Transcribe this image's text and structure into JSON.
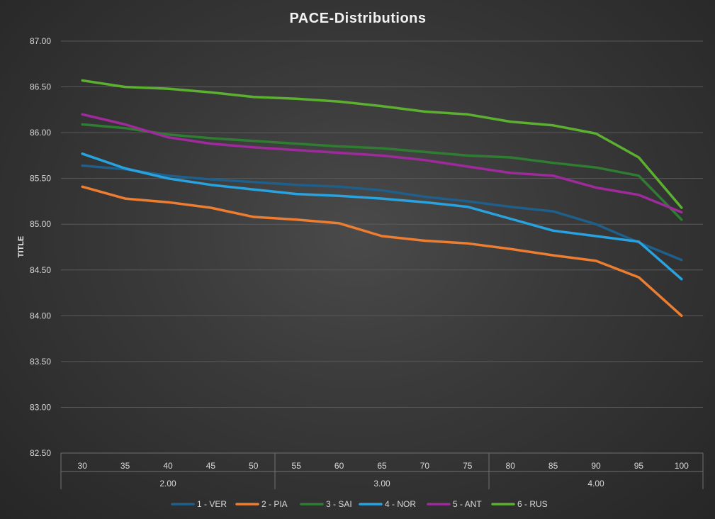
{
  "chart_data": {
    "type": "line",
    "title": "PACE-Distributions",
    "xlabel": "",
    "ylabel": "TITLE",
    "ylim": [
      82.5,
      87.0
    ],
    "y_ticks": [
      "82.50",
      "83.00",
      "83.50",
      "84.00",
      "84.50",
      "85.00",
      "85.50",
      "86.00",
      "86.50",
      "87.00"
    ],
    "grid": true,
    "legend_position": "bottom",
    "categories": [
      "30",
      "35",
      "40",
      "45",
      "50",
      "55",
      "60",
      "65",
      "70",
      "75",
      "80",
      "85",
      "90",
      "95",
      "100"
    ],
    "category_groups": [
      {
        "label": "2.00",
        "count": 5
      },
      {
        "label": "3.00",
        "count": 5
      },
      {
        "label": "4.00",
        "count": 5
      }
    ],
    "series": [
      {
        "name": "1 - VER",
        "color": "#1f5f8b",
        "values": [
          85.64,
          85.6,
          85.53,
          85.49,
          85.46,
          85.43,
          85.41,
          85.37,
          85.3,
          85.25,
          85.19,
          85.14,
          85.0,
          84.8,
          84.61
        ]
      },
      {
        "name": "2 - PIA",
        "color": "#ed7d31",
        "values": [
          85.41,
          85.28,
          85.24,
          85.18,
          85.08,
          85.05,
          85.01,
          84.87,
          84.82,
          84.79,
          84.73,
          84.66,
          84.6,
          84.42,
          84.0
        ]
      },
      {
        "name": "3 - SAI",
        "color": "#2e7d32",
        "values": [
          86.09,
          86.05,
          85.98,
          85.94,
          85.91,
          85.88,
          85.85,
          85.83,
          85.79,
          85.75,
          85.73,
          85.67,
          85.62,
          85.53,
          85.05
        ]
      },
      {
        "name": "4 - NOR",
        "color": "#29a3e0",
        "values": [
          85.77,
          85.61,
          85.5,
          85.43,
          85.38,
          85.33,
          85.31,
          85.28,
          85.24,
          85.19,
          85.06,
          84.93,
          84.87,
          84.81,
          84.4
        ]
      },
      {
        "name": "5 - ANT",
        "color": "#9e2a9b",
        "values": [
          86.2,
          86.09,
          85.95,
          85.88,
          85.84,
          85.81,
          85.78,
          85.75,
          85.7,
          85.63,
          85.56,
          85.53,
          85.4,
          85.32,
          85.13
        ]
      },
      {
        "name": "6 - RUS",
        "color": "#5cb030",
        "values": [
          86.57,
          86.5,
          86.48,
          86.44,
          86.39,
          86.37,
          86.34,
          86.29,
          86.23,
          86.2,
          86.12,
          86.08,
          85.99,
          85.73,
          85.18
        ]
      }
    ]
  }
}
